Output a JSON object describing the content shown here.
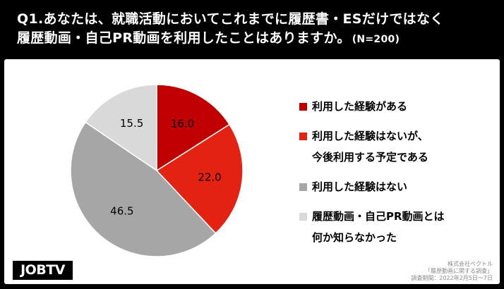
{
  "title": {
    "line1": "Q1.あなたは、就職活動においてこれまでに履歴書・ESだけではなく",
    "line2": "履歴動画・自己PR動画を利用したことはありますか。",
    "n_label": "(N=200)"
  },
  "chart_data": {
    "type": "pie",
    "categories": [
      "利用した経験がある",
      "利用した経験はないが、今後利用する予定である",
      "利用した経験はない",
      "履歴動画・自己PR動画とは何か知らなかった"
    ],
    "values": [
      16.0,
      22.0,
      46.5,
      15.5
    ],
    "value_labels": [
      "16.0",
      "22.0",
      "46.5",
      "15.5"
    ],
    "colors": [
      "#c00000",
      "#e32212",
      "#a6a6a6",
      "#d9d9d9"
    ],
    "start": "12 o'clock, clockwise",
    "legend_position": "right"
  },
  "legend": [
    {
      "lines": [
        "利用した経験がある"
      ],
      "color": "#c00000"
    },
    {
      "lines": [
        "利用した経験はないが、",
        "今後利用する予定である"
      ],
      "color": "#e32212"
    },
    {
      "lines": [
        "利用した経験はない"
      ],
      "color": "#a6a6a6"
    },
    {
      "lines": [
        "履歴動画・自己PR動画とは",
        "何か知らなかった"
      ],
      "color": "#d9d9d9"
    }
  ],
  "source": {
    "line1": "株式会社ベクトル",
    "line2": "「履歴動画に関する調査」",
    "line3": "調査期間：2022年2月5日〜7日"
  },
  "logo": {
    "text": "JOBTV"
  }
}
